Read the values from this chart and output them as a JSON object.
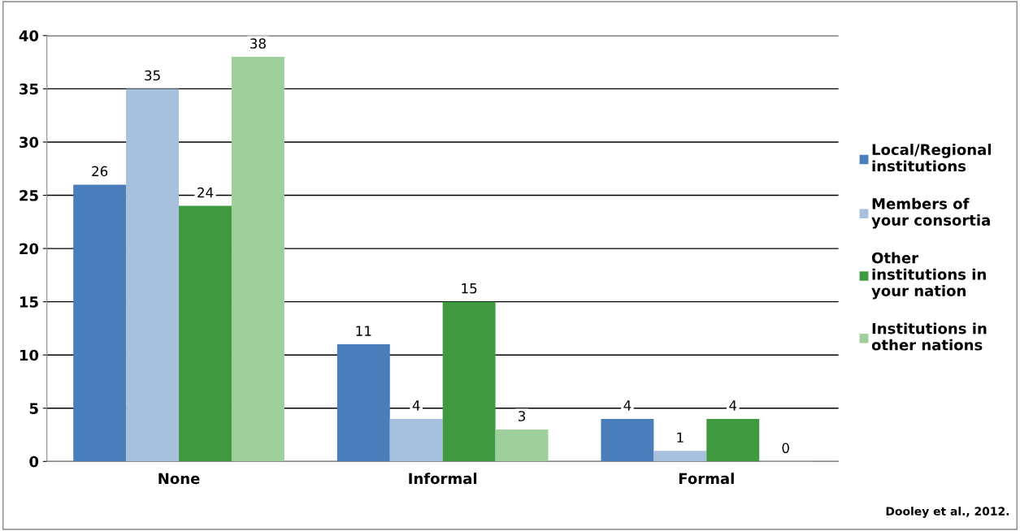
{
  "chart_data": {
    "type": "bar",
    "categories": [
      "None",
      "Informal",
      "Formal"
    ],
    "series": [
      {
        "name": "Local/Regional\ninstitutions",
        "color": "#4a7ebb",
        "values": [
          26,
          11,
          4
        ]
      },
      {
        "name": "Members of\nyour consortia",
        "color": "#a7c0de",
        "values": [
          35,
          4,
          1
        ]
      },
      {
        "name": "Other\ninstitutions in\nyour nation",
        "color": "#3f9a3f",
        "values": [
          24,
          15,
          4
        ]
      },
      {
        "name": "Institutions in\nother nations",
        "color": "#9fcf9a",
        "values": [
          38,
          3,
          0
        ]
      }
    ],
    "ylim": [
      0,
      40
    ],
    "yticks": [
      0,
      5,
      10,
      15,
      20,
      25,
      30,
      35,
      40
    ],
    "grid": "y",
    "legend": "right",
    "data_labels": true,
    "annotations": [
      "Dooley et al., 2012."
    ]
  }
}
